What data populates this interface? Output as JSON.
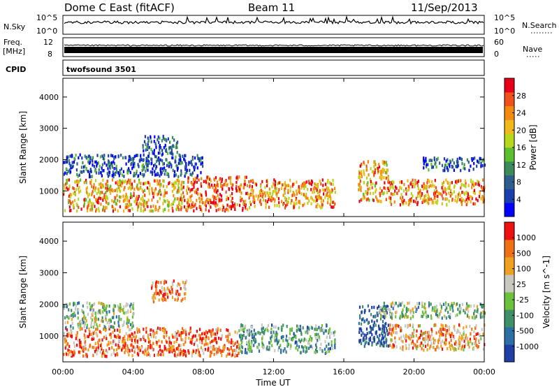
{
  "header": {
    "station": "Dome C East (fitACF)",
    "beam": "Beam 11",
    "date": "11/Sep/2013"
  },
  "panels": {
    "nsky_label": "N.Sky",
    "nsearch_label": "N.Search",
    "freq_label_top": "Freq.",
    "freq_label_unit": "[MHz]",
    "nave_label": "Nave",
    "cpid_label": "CPID",
    "cpid_value": "twofsound 3501",
    "noise_ticks": [
      "10^5",
      "10^0"
    ],
    "noise_right_ticks": [
      "10^5",
      "10^0"
    ],
    "freq_ticks": [
      "12",
      "8"
    ],
    "nave_ticks": [
      "60",
      "0"
    ]
  },
  "chart_data": [
    {
      "type": "heatmap",
      "name": "power",
      "ylabel": "Slant Range [km]",
      "xlabel": "Time UT",
      "x_ticks": [
        "00:00",
        "04:00",
        "08:00",
        "12:00",
        "16:00",
        "20:00",
        "00:00"
      ],
      "xlim_hours": [
        0,
        24
      ],
      "y_ticks": [
        1000,
        2000,
        3000,
        4000
      ],
      "ylim_km": [
        180,
        4600
      ],
      "colorbar_label": "Power [dB]",
      "colorbar_ticks": [
        "28",
        "24",
        "20",
        "16",
        "12",
        "8",
        "4"
      ],
      "colorbar_colors": [
        "#0000ff",
        "#1a3fb0",
        "#2e5e8e",
        "#3c8b5a",
        "#5bbf2e",
        "#b7d71d",
        "#f0b81a",
        "#f28a10",
        "#f0501c",
        "#e8001a"
      ],
      "scatter_regions": [
        {
          "t0": 0.0,
          "t1": 7.0,
          "r0": 400,
          "r1": 1400,
          "level": 0.7
        },
        {
          "t0": 7.0,
          "t1": 10.5,
          "r0": 400,
          "r1": 1500,
          "level": 0.85
        },
        {
          "t0": 10.5,
          "t1": 15.5,
          "r0": 500,
          "r1": 1400,
          "level": 0.75
        },
        {
          "t0": 16.8,
          "t1": 18.5,
          "r0": 700,
          "r1": 2000,
          "level": 0.7
        },
        {
          "t0": 18.5,
          "t1": 24.0,
          "r0": 600,
          "r1": 1400,
          "level": 0.75
        },
        {
          "t0": 0.0,
          "t1": 8.0,
          "r0": 1500,
          "r1": 2200,
          "level": 0.2
        },
        {
          "t0": 4.5,
          "t1": 6.5,
          "r0": 2200,
          "r1": 2800,
          "level": 0.25
        },
        {
          "t0": 20.5,
          "t1": 24.0,
          "r0": 1700,
          "r1": 2100,
          "level": 0.2
        }
      ]
    },
    {
      "type": "heatmap",
      "name": "velocity",
      "ylabel": "Slant Range [km]",
      "xlabel": "Time UT",
      "x_ticks": [
        "00:00",
        "04:00",
        "08:00",
        "12:00",
        "16:00",
        "20:00",
        "00:00"
      ],
      "xlim_hours": [
        0,
        24
      ],
      "y_ticks": [
        1000,
        2000,
        3000,
        4000
      ],
      "ylim_km": [
        180,
        4600
      ],
      "colorbar_label": "Velocity [m s^-1]",
      "colorbar_ticks": [
        "1000",
        "500",
        "100",
        "25",
        "-25",
        "-100",
        "-500",
        "-1000"
      ],
      "colorbar_colors": [
        "#1f3ea6",
        "#2c6fa6",
        "#3f8f6a",
        "#6cc23a",
        "#c8c8c0",
        "#f0a020",
        "#f07018",
        "#ef1010"
      ],
      "scatter_regions": [
        {
          "t0": 0.0,
          "t1": 10.0,
          "r0": 400,
          "r1": 1300,
          "level": 0.8
        },
        {
          "t0": 0.0,
          "t1": 4.0,
          "r0": 1300,
          "r1": 2100,
          "level": 0.45
        },
        {
          "t0": 10.0,
          "t1": 15.5,
          "r0": 500,
          "r1": 1400,
          "level": 0.35
        },
        {
          "t0": 16.8,
          "t1": 18.5,
          "r0": 700,
          "r1": 2000,
          "level": 0.1
        },
        {
          "t0": 18.5,
          "t1": 24.0,
          "r0": 600,
          "r1": 1400,
          "level": 0.7
        },
        {
          "t0": 5.0,
          "t1": 7.0,
          "r0": 2100,
          "r1": 2800,
          "level": 0.75
        },
        {
          "t0": 18.0,
          "t1": 24.0,
          "r0": 1600,
          "r1": 2100,
          "level": 0.45
        }
      ]
    }
  ]
}
